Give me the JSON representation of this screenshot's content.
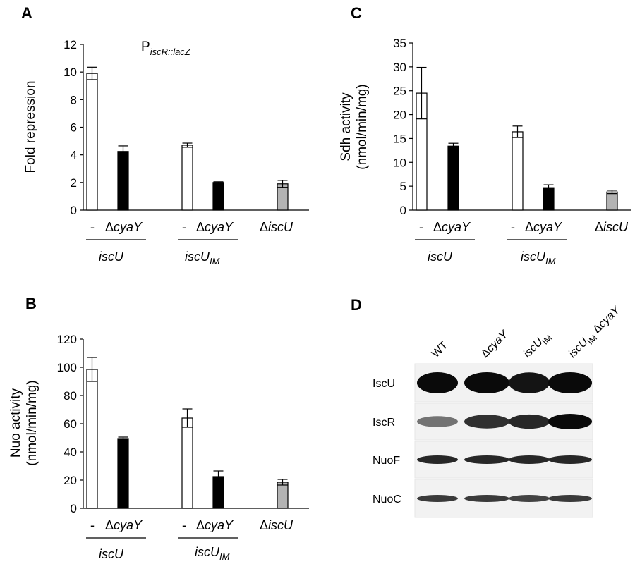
{
  "figure": {
    "panels": [
      {
        "id": "A",
        "letter": "A"
      },
      {
        "id": "B",
        "letter": "B"
      },
      {
        "id": "C",
        "letter": "C"
      },
      {
        "id": "D",
        "letter": "D"
      }
    ]
  },
  "colors": {
    "wild_type": "#ffffff",
    "cyaY_deletion": "#000000",
    "iscU_deletion": "#b3b3b3"
  },
  "chart_data": [
    {
      "panel": "A",
      "type": "bar",
      "title_main": "P",
      "title_sub": "iscR::lacZ",
      "ylabel": "Fold repression",
      "ylim": [
        0,
        12
      ],
      "yticks": [
        "0",
        "2",
        "4",
        "6",
        "8",
        "10",
        "12"
      ],
      "bars": [
        {
          "group": "iscU",
          "label": "-",
          "value": 9.9,
          "error": 0.45,
          "color": "#ffffff"
        },
        {
          "group": "iscU",
          "label": "ΔcyaY",
          "value": 4.25,
          "error": 0.4,
          "color": "#000000"
        },
        {
          "group": "iscUIM",
          "label": "-",
          "value": 4.7,
          "error": 0.15,
          "color": "#ffffff"
        },
        {
          "group": "iscUIM",
          "label": "ΔcyaY",
          "value": 2.0,
          "error": 0.05,
          "color": "#000000"
        },
        {
          "group": "ΔiscU",
          "label": "",
          "value": 1.9,
          "error": 0.25,
          "color": "#b3b3b3"
        }
      ]
    },
    {
      "panel": "B",
      "type": "bar",
      "ylabel_line1": "Nuo activity",
      "ylabel_line2": "(nmol/min/mg)",
      "ylim": [
        0,
        120
      ],
      "yticks": [
        "0",
        "20",
        "40",
        "60",
        "80",
        "100",
        "120"
      ],
      "bars": [
        {
          "group": "iscU",
          "label": "-",
          "value": 98.5,
          "error": 8.5,
          "color": "#ffffff"
        },
        {
          "group": "iscU",
          "label": "ΔcyaY",
          "value": 49.5,
          "error": 1.0,
          "color": "#000000"
        },
        {
          "group": "iscUIM",
          "label": "-",
          "value": 64,
          "error": 6.5,
          "color": "#ffffff"
        },
        {
          "group": "iscUIM",
          "label": "ΔcyaY",
          "value": 22.5,
          "error": 4.0,
          "color": "#000000"
        },
        {
          "group": "ΔiscU",
          "label": "",
          "value": 18.5,
          "error": 2.0,
          "color": "#b3b3b3"
        }
      ]
    },
    {
      "panel": "C",
      "type": "bar",
      "ylabel_line1": "Sdh activity",
      "ylabel_line2": "(nmol/min/mg)",
      "ylim": [
        0,
        35
      ],
      "yticks": [
        "0",
        "5",
        "10",
        "15",
        "20",
        "25",
        "30",
        "35"
      ],
      "bars": [
        {
          "group": "iscU",
          "label": "-",
          "value": 24.5,
          "error": 5.4,
          "color": "#ffffff"
        },
        {
          "group": "iscU",
          "label": "ΔcyaY",
          "value": 13.4,
          "error": 0.6,
          "color": "#000000"
        },
        {
          "group": "iscUIM",
          "label": "-",
          "value": 16.4,
          "error": 1.2,
          "color": "#ffffff"
        },
        {
          "group": "iscUIM",
          "label": "ΔcyaY",
          "value": 4.7,
          "error": 0.6,
          "color": "#000000"
        },
        {
          "group": "ΔiscU",
          "label": "",
          "value": 3.8,
          "error": 0.35,
          "color": "#b3b3b3"
        }
      ]
    }
  ],
  "group_labels": {
    "dash": "-",
    "delta": "Δ",
    "cyaY": "cyaY",
    "iscU": "iscU",
    "iscU_IM_main": "iscU",
    "iscU_IM_sub": "IM",
    "delta_iscU": "iscU"
  },
  "western": {
    "lanes": [
      {
        "prefix": "",
        "main": "WT",
        "sub": "",
        "suffix": ""
      },
      {
        "prefix": "Δ",
        "main": "cyaY",
        "sub": "",
        "suffix": ""
      },
      {
        "prefix": "",
        "main": "iscU",
        "sub": "IM",
        "suffix": ""
      },
      {
        "prefix": "",
        "main": "iscU",
        "sub": "IM",
        "suffix": " ΔcyaY"
      }
    ],
    "blots": [
      {
        "name": "IscU",
        "intensity": [
          1.0,
          1.0,
          0.95,
          1.0
        ]
      },
      {
        "name": "IscR",
        "intensity": [
          0.45,
          0.8,
          0.85,
          1.0
        ]
      },
      {
        "name": "NuoF",
        "intensity": [
          0.85,
          0.85,
          0.85,
          0.85
        ]
      },
      {
        "name": "NuoC",
        "intensity": [
          0.75,
          0.75,
          0.7,
          0.75
        ]
      }
    ]
  }
}
